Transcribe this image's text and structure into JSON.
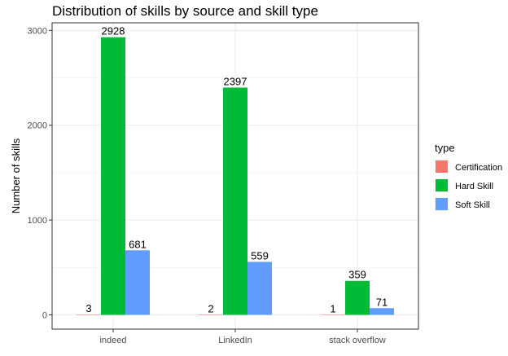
{
  "chart_data": {
    "type": "bar",
    "title": "Distribution of skills by source and skill type",
    "xlabel": "",
    "ylabel": "Number of skills",
    "categories": [
      "indeed",
      "LinkedIn",
      "stack overflow"
    ],
    "series": [
      {
        "name": "Certification",
        "values": [
          3,
          2,
          1
        ],
        "color": "#f8766d"
      },
      {
        "name": "Hard Skill",
        "values": [
          2928,
          2397,
          359
        ],
        "color": "#00ba38"
      },
      {
        "name": "Soft Skill",
        "values": [
          681,
          559,
          71
        ],
        "color": "#619cff"
      }
    ],
    "data_labels": [
      [
        "3",
        "2",
        "1"
      ],
      [
        "2928",
        "2397",
        "359"
      ],
      [
        "681",
        "559",
        "71"
      ]
    ],
    "ylim": [
      -150,
      3080
    ],
    "yticks": [
      0,
      1000,
      2000,
      3000
    ],
    "ytick_labels": [
      "0",
      "1000",
      "2000",
      "3000"
    ],
    "grid": true,
    "legend": {
      "title": "type",
      "position": "right"
    }
  }
}
